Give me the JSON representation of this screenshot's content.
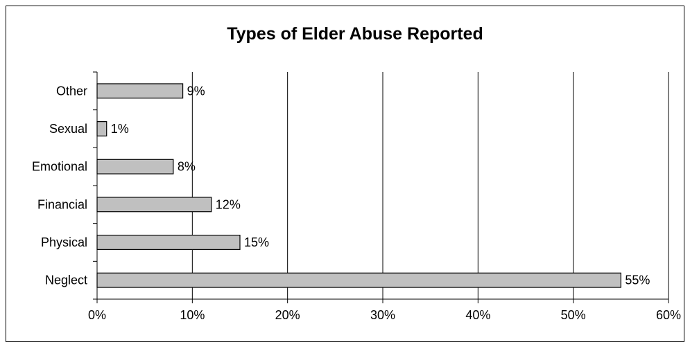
{
  "chart_data": {
    "type": "bar",
    "orientation": "horizontal",
    "title": "Types of Elder Abuse Reported",
    "xlabel": "",
    "ylabel": "",
    "categories": [
      "Neglect",
      "Physical",
      "Financial",
      "Emotional",
      "Sexual",
      "Other"
    ],
    "values": [
      55,
      15,
      12,
      8,
      1,
      9
    ],
    "data_labels": [
      "55%",
      "15%",
      "12%",
      "8%",
      "1%",
      "9%"
    ],
    "xlim": [
      0,
      60
    ],
    "x_ticks": [
      0,
      10,
      20,
      30,
      40,
      50,
      60
    ],
    "x_tick_labels": [
      "0%",
      "10%",
      "20%",
      "30%",
      "40%",
      "50%",
      "60%"
    ],
    "grid": "vertical",
    "legend": "none",
    "colors": {
      "bar_fill": "#c0c0c0",
      "bar_stroke": "#000000",
      "grid": "#000000"
    }
  }
}
